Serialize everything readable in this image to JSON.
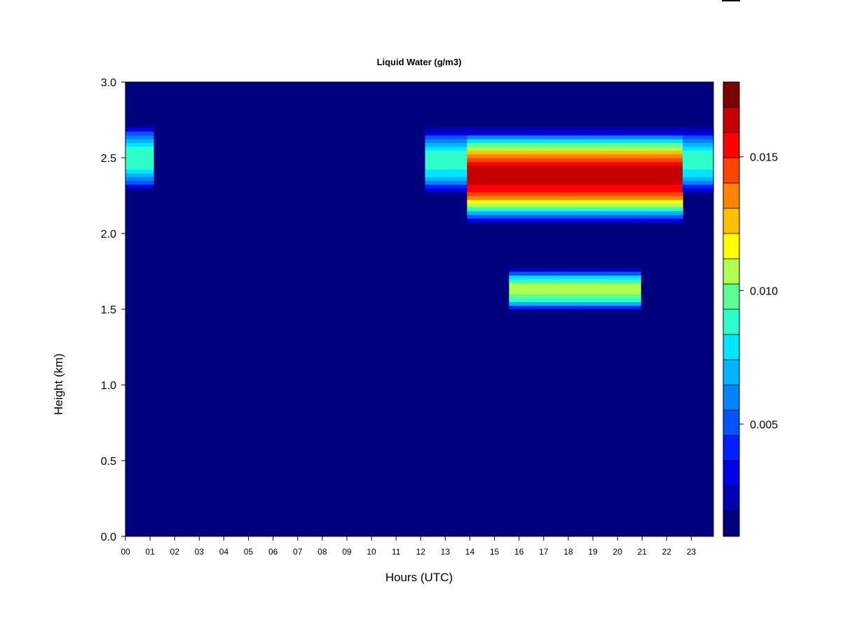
{
  "chart_data": {
    "type": "heatmap",
    "title": "Liquid Water (g/m3)",
    "xlabel": "Hours (UTC)",
    "ylabel": "Height (km)",
    "x_ticks": [
      "00",
      "01",
      "02",
      "03",
      "04",
      "05",
      "06",
      "07",
      "08",
      "09",
      "10",
      "11",
      "12",
      "13",
      "14",
      "15",
      "16",
      "17",
      "18",
      "19",
      "20",
      "21",
      "22",
      "23"
    ],
    "xlim": [
      0,
      23.9
    ],
    "y_ticks": [
      "0.0",
      "0.5",
      "1.0",
      "1.5",
      "2.0",
      "2.5",
      "3.0"
    ],
    "ylim": [
      0,
      3.0
    ],
    "colorbar": {
      "levels_min": 0.0008,
      "level_step": 0.001,
      "n_levels": 17,
      "ticks": [
        "0.005",
        "0.010",
        "0.015"
      ],
      "colors": [
        "#00007F",
        "#0000B4",
        "#0000E6",
        "#0020FF",
        "#0055FF",
        "#0085FF",
        "#00B4FF",
        "#00E5FF",
        "#2EFFC8",
        "#5CFF94",
        "#AEFF4F",
        "#FFFF00",
        "#FFC000",
        "#FF8500",
        "#FF4400",
        "#FF0000",
        "#C40000",
        "#7F0000"
      ]
    },
    "grid": false,
    "background_value": 0,
    "features": [
      {
        "kind": "cloud_layer",
        "x_start": 0.0,
        "x_end": 1.15,
        "center_km": 2.5,
        "halfwidth_km": 0.22,
        "peak_gm3": 0.0085
      },
      {
        "kind": "cloud_layer",
        "x_start": 12.2,
        "x_end": 24.0,
        "center_km": 2.48,
        "halfwidth_km": 0.22,
        "peak_gm3": 0.0085
      },
      {
        "kind": "cloud_layer",
        "x_start": 13.9,
        "x_end": 22.6,
        "center_km": 2.38,
        "halfwidth_km": 0.31,
        "peak_gm3": 0.0165
      },
      {
        "kind": "cloud_layer",
        "x_start": 15.6,
        "x_end": 20.9,
        "center_km": 1.63,
        "halfwidth_km": 0.14,
        "peak_gm3": 0.0105
      }
    ]
  }
}
